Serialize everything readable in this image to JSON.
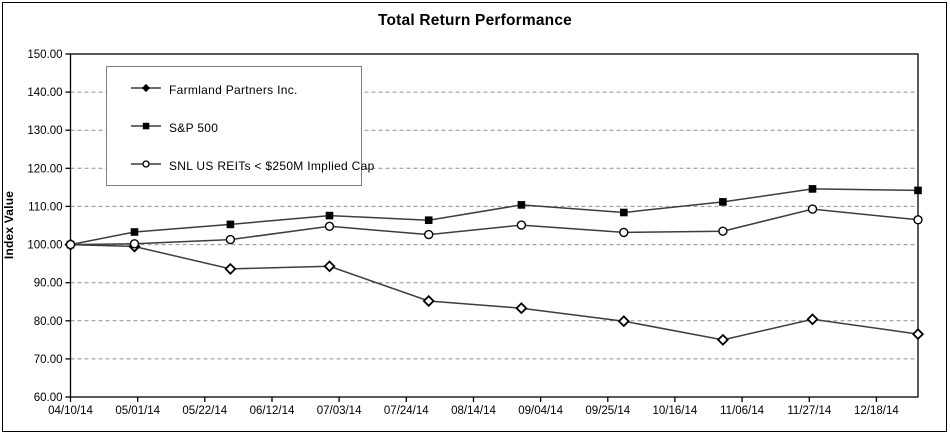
{
  "chart_data": {
    "type": "line",
    "title": "Total Return Performance",
    "ylabel": "Index Value",
    "ylim": [
      60,
      150
    ],
    "ytick_labels": [
      "60.00",
      "70.00",
      "80.00",
      "90.00",
      "100.00",
      "110.00",
      "120.00",
      "130.00",
      "140.00",
      "150.00"
    ],
    "grid": "horizontal-dashed",
    "legend_position": "top-left-inside",
    "x_tick_labels": [
      "04/10/14",
      "05/01/14",
      "05/22/14",
      "06/12/14",
      "07/03/14",
      "07/24/14",
      "08/14/14",
      "09/04/14",
      "09/25/14",
      "10/16/14",
      "11/06/14",
      "11/27/14",
      "12/18/14"
    ],
    "x_tick_days": [
      0,
      21,
      42,
      63,
      84,
      105,
      126,
      147,
      168,
      189,
      210,
      231,
      252
    ],
    "x_domain_days": [
      0,
      265
    ],
    "x": [
      "04/10/14",
      "04/30/14",
      "05/30/14",
      "06/30/14",
      "07/31/14",
      "08/29/14",
      "09/30/14",
      "10/31/14",
      "11/28/14",
      "12/31/14"
    ],
    "x_days": [
      0,
      20,
      50,
      81,
      112,
      141,
      173,
      204,
      232,
      265
    ],
    "series": [
      {
        "name": "Farmland Partners Inc.",
        "marker": "diamond",
        "values": [
          100.0,
          99.5,
          93.6,
          94.3,
          85.2,
          83.3,
          79.9,
          75.0,
          80.4,
          76.5
        ]
      },
      {
        "name": "S&P 500",
        "marker": "square",
        "values": [
          100.0,
          103.3,
          105.3,
          107.6,
          106.4,
          110.4,
          108.4,
          111.2,
          114.6,
          114.2
        ]
      },
      {
        "name": "SNL US REITs < $250M Implied Cap",
        "marker": "circle",
        "values": [
          100.0,
          100.2,
          101.3,
          104.8,
          102.6,
          105.1,
          103.2,
          103.5,
          109.3,
          106.5
        ]
      }
    ],
    "colors": {
      "line": "#3d3d3d",
      "marker": "#000000",
      "grid": "#909090",
      "axis": "#000000",
      "legend_border": "#7f7f7f",
      "background": "#ffffff"
    }
  }
}
